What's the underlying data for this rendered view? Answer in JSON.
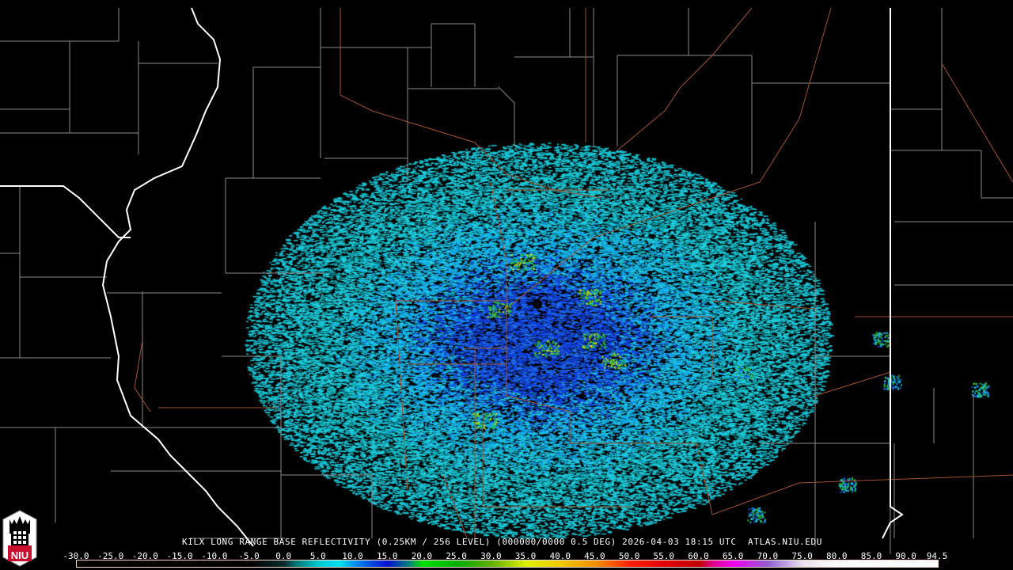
{
  "caption": "KILX LONG RANGE BASE REFLECTIVITY (0.25KM / 256 LEVEL) (000000/0000 0.5 DEG) 2026-04-03 18:15 UTC  ATLAS.NIU.EDU",
  "logo_text": "NIU",
  "radar_site": "KILX",
  "colorbar": {
    "labels": [
      "-30.0",
      "-25.0",
      "-20.0",
      "-15.0",
      "-10.0",
      "-5.0",
      "0.0",
      "5.0",
      "10.0",
      "15.0",
      "20.0",
      "25.0",
      "30.0",
      "35.0",
      "40.0",
      "45.0",
      "50.0",
      "55.0",
      "60.0",
      "65.0",
      "70.0",
      "75.0",
      "80.0",
      "85.0",
      "90.0",
      "94.5"
    ],
    "stops": [
      {
        "value": -30,
        "color": "#000000"
      },
      {
        "value": -5,
        "color": "#000000"
      },
      {
        "value": 0,
        "color": "#0a2a2a"
      },
      {
        "value": 2,
        "color": "#00807f"
      },
      {
        "value": 5,
        "color": "#00c8d0"
      },
      {
        "value": 8,
        "color": "#00e0f0"
      },
      {
        "value": 10,
        "color": "#0098f0"
      },
      {
        "value": 13,
        "color": "#0040e0"
      },
      {
        "value": 15,
        "color": "#0010d0"
      },
      {
        "value": 18,
        "color": "#008080"
      },
      {
        "value": 20,
        "color": "#00e000"
      },
      {
        "value": 25,
        "color": "#00b000"
      },
      {
        "value": 30,
        "color": "#60b000"
      },
      {
        "value": 35,
        "color": "#e0f000"
      },
      {
        "value": 40,
        "color": "#f0c800"
      },
      {
        "value": 45,
        "color": "#f09000"
      },
      {
        "value": 50,
        "color": "#ff2000"
      },
      {
        "value": 55,
        "color": "#e00000"
      },
      {
        "value": 60,
        "color": "#c00000"
      },
      {
        "value": 62,
        "color": "#e00090"
      },
      {
        "value": 65,
        "color": "#f000f0"
      },
      {
        "value": 70,
        "color": "#9060d0"
      },
      {
        "value": 75,
        "color": "#e8e0f0"
      },
      {
        "value": 80,
        "color": "#ffffff"
      },
      {
        "value": 94.5,
        "color": "#ffffff"
      }
    ]
  },
  "colors": {
    "county_lines": "#8a8a8a",
    "state_lines": "#ffffff",
    "highways": "#a0522d"
  }
}
